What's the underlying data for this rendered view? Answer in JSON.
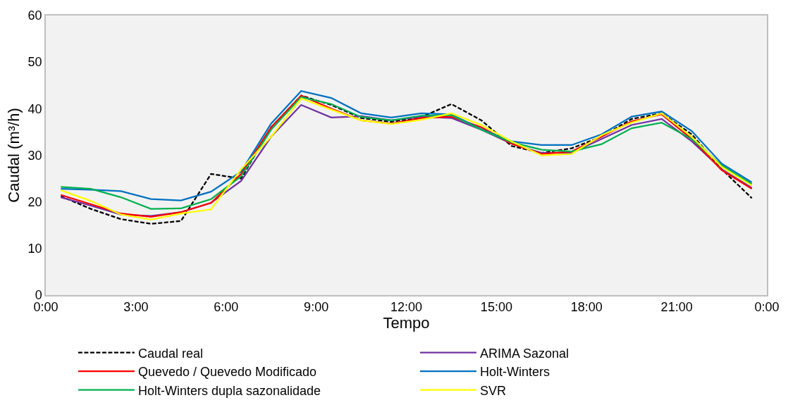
{
  "chart_data": {
    "type": "line",
    "xlabel": "Tempo",
    "ylabel": "Caudal (m³/h)",
    "x": [
      0.5,
      1.5,
      2.5,
      3.5,
      4.5,
      5.5,
      6.5,
      7.5,
      8.5,
      9.5,
      10.5,
      11.5,
      12.5,
      13.5,
      14.5,
      15.5,
      16.5,
      17.5,
      18.5,
      19.5,
      20.5,
      21.5,
      22.5,
      23.5
    ],
    "xlim": [
      0,
      24
    ],
    "xticks": [
      {
        "value": 0,
        "label": "0:00"
      },
      {
        "value": 3,
        "label": "3:00"
      },
      {
        "value": 6,
        "label": "6:00"
      },
      {
        "value": 9,
        "label": "9:00"
      },
      {
        "value": 12,
        "label": "12:00"
      },
      {
        "value": 15,
        "label": "15:00"
      },
      {
        "value": 18,
        "label": "18:00"
      },
      {
        "value": 21,
        "label": "21:00"
      },
      {
        "value": 24,
        "label": "0:00"
      }
    ],
    "ylim": [
      0,
      60
    ],
    "yticks": [
      0,
      10,
      20,
      30,
      40,
      50,
      60
    ],
    "grid": false,
    "legend": "bottom",
    "marker": "none",
    "series": [
      {
        "name": "Caudal real",
        "color": "#000000",
        "line_style": "dashed",
        "values": [
          21.2,
          18.5,
          16.3,
          15.3,
          15.9,
          26,
          25,
          36,
          42.8,
          40.8,
          38,
          37.2,
          38.2,
          41,
          37.5,
          32,
          30.5,
          31.5,
          34,
          37.8,
          39,
          34.5,
          27,
          20.8
        ]
      },
      {
        "name": "ARIMA Sazonal",
        "color": "#7030a0",
        "line_style": "solid",
        "values": [
          21,
          19.2,
          17.3,
          17,
          17.8,
          19.8,
          24.5,
          34,
          40.8,
          38.1,
          38.4,
          37.5,
          38.3,
          38,
          35.5,
          32.5,
          30.5,
          30.5,
          33.5,
          36.5,
          37.8,
          33,
          27,
          23
        ]
      },
      {
        "name": "Quevedo / Quevedo Modificado",
        "color": "#ff0000",
        "line_style": "solid",
        "values": [
          21.5,
          19.5,
          17.5,
          16.8,
          17.8,
          19.8,
          26,
          36,
          42.8,
          40,
          37.5,
          36.8,
          38,
          38.3,
          36,
          32.5,
          30.3,
          30.8,
          34,
          37.3,
          38.8,
          33.5,
          26.8,
          22.8
        ]
      },
      {
        "name": "Holt-Winters",
        "color": "#0070c0",
        "line_style": "solid",
        "values": [
          22.8,
          22.6,
          22.3,
          20.6,
          20.3,
          22.2,
          26.5,
          36.8,
          43.8,
          42.3,
          39,
          38.1,
          39,
          38.8,
          35.6,
          33,
          32.2,
          32.2,
          34.5,
          38.3,
          39.4,
          35.2,
          28.2,
          24.2
        ]
      },
      {
        "name": "Holt-Winters dupla sazonalidade",
        "color": "#00b050",
        "line_style": "solid",
        "values": [
          23.2,
          22.8,
          21,
          18.5,
          18.6,
          20.6,
          25.5,
          35.5,
          42.5,
          41,
          38.2,
          37.5,
          38.5,
          38.6,
          35.5,
          32.8,
          31.2,
          30.8,
          32.4,
          35.8,
          37,
          33.5,
          27.8,
          23.8
        ]
      },
      {
        "name": "SVR",
        "color": "#ffff00",
        "line_style": "solid",
        "values": [
          22.5,
          20.2,
          17.3,
          16.2,
          17.5,
          18.4,
          27,
          34,
          42.2,
          39.8,
          37.5,
          36.7,
          37.6,
          39,
          36.5,
          33,
          30,
          30.3,
          34.3,
          37,
          39,
          34,
          27.5,
          23.5
        ]
      }
    ]
  }
}
